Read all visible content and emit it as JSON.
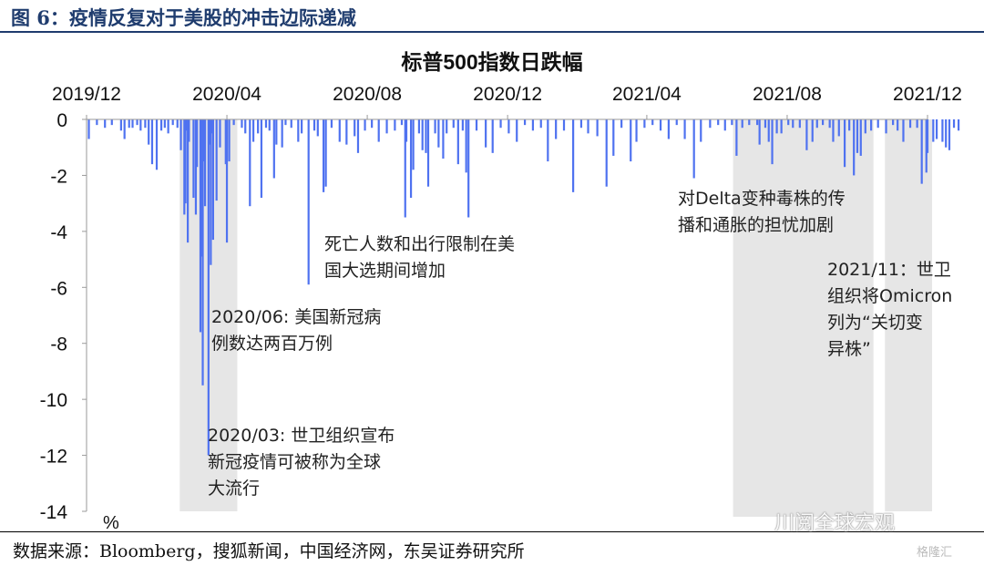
{
  "figure_label": "图 6：疫情反复对于美股的冲击边际递减",
  "source": "数据来源：Bloomberg，搜狐新闻，中国经济网，东吴证券研究所",
  "watermark": {
    "brand": "川阅全球宏观",
    "corner": "格隆汇"
  },
  "colors": {
    "bars": "#4f72f0",
    "shade": "#e6e6e6",
    "header": "#1f3c6e"
  },
  "chart_data": {
    "type": "bar",
    "title": "标普500指数日跌幅",
    "unit_label": "%",
    "xlabel": "",
    "ylabel": "",
    "ylim": [
      -14,
      0
    ],
    "y_ticks": [
      "0",
      "-2",
      "-4",
      "-6",
      "-8",
      "-10",
      "-12",
      "-14"
    ],
    "y_tick_values": [
      0,
      -2,
      -4,
      -6,
      -8,
      -10,
      -12,
      -14
    ],
    "x_range": [
      "2019-12",
      "2021-12"
    ],
    "x_ticks": [
      "2019/12",
      "2020/04",
      "2020/08",
      "2020/12",
      "2021/04",
      "2021/08",
      "2021/12"
    ],
    "x_tick_dates": [
      "2019-12",
      "2020-04",
      "2020-08",
      "2020-12",
      "2021-04",
      "2021-08",
      "2021-12"
    ],
    "grid": false,
    "legend": "none",
    "shaded_periods": [
      {
        "start": "2020-02-20",
        "end": "2020-04-10"
      },
      {
        "start": "2021-06-15",
        "end": "2021-10-15"
      },
      {
        "start": "2021-10-25",
        "end": "2021-12-05"
      }
    ],
    "annotations": [
      {
        "lines": [
          "2020/03: 世卫组织宣布",
          "新冠疫情可被称为全球",
          "大流行"
        ]
      },
      {
        "lines": [
          "2020/06: 美国新冠病",
          "例数达两百万例"
        ]
      },
      {
        "lines": [
          "死亡人数和出行限制在美",
          "国大选期间增加"
        ]
      },
      {
        "lines": [
          "对Delta变种毒株的传",
          "播和通胀的担忧加剧"
        ]
      },
      {
        "lines": [
          "2021/11：世卫",
          "组织将Omicron",
          "列为“关切变",
          "异株”"
        ]
      }
    ],
    "series": [
      {
        "dates": [
          "2019-12-03",
          "2019-12-10",
          "2019-12-17",
          "2019-12-23",
          "2019-12-31",
          "2020-01-03",
          "2020-01-07",
          "2020-01-10",
          "2020-01-14",
          "2020-01-17",
          "2020-01-21",
          "2020-01-24",
          "2020-01-27",
          "2020-01-31",
          "2020-02-04",
          "2020-02-07",
          "2020-02-10",
          "2020-02-14",
          "2020-02-18",
          "2020-02-21",
          "2020-02-24",
          "2020-02-25",
          "2020-02-26",
          "2020-02-27",
          "2020-02-28",
          "2020-03-03",
          "2020-03-05",
          "2020-03-06",
          "2020-03-09",
          "2020-03-10",
          "2020-03-11",
          "2020-03-12",
          "2020-03-13",
          "2020-03-16",
          "2020-03-17",
          "2020-03-18",
          "2020-03-19",
          "2020-03-20",
          "2020-03-23",
          "2020-03-26",
          "2020-03-31",
          "2020-04-01",
          "2020-04-03",
          "2020-04-07",
          "2020-04-14",
          "2020-04-17",
          "2020-04-21",
          "2020-04-24",
          "2020-04-28",
          "2020-05-01",
          "2020-05-05",
          "2020-05-08",
          "2020-05-12",
          "2020-05-14",
          "2020-05-19",
          "2020-05-22",
          "2020-05-27",
          "2020-06-02",
          "2020-06-05",
          "2020-06-11",
          "2020-06-16",
          "2020-06-19",
          "2020-06-24",
          "2020-06-26",
          "2020-07-01",
          "2020-07-08",
          "2020-07-14",
          "2020-07-21",
          "2020-07-24",
          "2020-07-30",
          "2020-08-05",
          "2020-08-11",
          "2020-08-18",
          "2020-08-25",
          "2020-08-31",
          "2020-09-03",
          "2020-09-04",
          "2020-09-08",
          "2020-09-10",
          "2020-09-15",
          "2020-09-18",
          "2020-09-21",
          "2020-09-23",
          "2020-09-29",
          "2020-10-02",
          "2020-10-06",
          "2020-10-09",
          "2020-10-15",
          "2020-10-19",
          "2020-10-23",
          "2020-10-26",
          "2020-10-28",
          "2020-11-04",
          "2020-11-12",
          "2020-11-18",
          "2020-11-25",
          "2020-12-02",
          "2020-12-09",
          "2020-12-16",
          "2020-12-23",
          "2020-12-30",
          "2021-01-05",
          "2021-01-12",
          "2021-01-19",
          "2021-01-27",
          "2021-02-03",
          "2021-02-09",
          "2021-02-17",
          "2021-02-25",
          "2021-03-03",
          "2021-03-10",
          "2021-03-18",
          "2021-03-23",
          "2021-03-30",
          "2021-04-06",
          "2021-04-13",
          "2021-04-20",
          "2021-04-27",
          "2021-05-04",
          "2021-05-12",
          "2021-05-18",
          "2021-05-26",
          "2021-06-02",
          "2021-06-08",
          "2021-06-14",
          "2021-06-18",
          "2021-06-23",
          "2021-06-29",
          "2021-07-06",
          "2021-07-08",
          "2021-07-13",
          "2021-07-16",
          "2021-07-19",
          "2021-07-23",
          "2021-07-27",
          "2021-08-02",
          "2021-08-06",
          "2021-08-12",
          "2021-08-18",
          "2021-08-23",
          "2021-08-27",
          "2021-09-01",
          "2021-09-07",
          "2021-09-10",
          "2021-09-15",
          "2021-09-20",
          "2021-09-24",
          "2021-09-28",
          "2021-10-01",
          "2021-10-04",
          "2021-10-08",
          "2021-10-13",
          "2021-10-19",
          "2021-10-26",
          "2021-11-01",
          "2021-11-05",
          "2021-11-10",
          "2021-11-16",
          "2021-11-22",
          "2021-11-26",
          "2021-11-30",
          "2021-12-01",
          "2021-12-06",
          "2021-12-09",
          "2021-12-14",
          "2021-12-17",
          "2021-12-20",
          "2021-12-24",
          "2021-12-28"
        ],
        "values": [
          -0.7,
          -0.2,
          -0.3,
          -0.2,
          -0.4,
          -0.7,
          -0.3,
          -0.3,
          -0.2,
          -0.4,
          -0.3,
          -0.9,
          -1.6,
          -1.8,
          -0.4,
          -0.3,
          -0.5,
          -0.2,
          -0.3,
          -1.1,
          -3.4,
          -3.0,
          -0.4,
          -4.4,
          -0.8,
          -2.8,
          -3.4,
          -1.7,
          -7.6,
          -4.9,
          -9.5,
          -1.5,
          -3.1,
          -12.0,
          -0.9,
          -5.2,
          -0.5,
          -4.3,
          -2.9,
          -1.0,
          -1.6,
          -4.4,
          -1.5,
          -0.2,
          -0.3,
          -0.5,
          -3.1,
          -0.8,
          -0.5,
          -2.8,
          -0.3,
          -0.4,
          -2.1,
          -0.9,
          -1.0,
          -0.2,
          -0.3,
          -0.8,
          -0.5,
          -5.9,
          -0.4,
          -0.6,
          -2.6,
          -2.4,
          -0.3,
          -0.8,
          -0.9,
          -0.6,
          -1.2,
          -0.4,
          -0.3,
          -0.8,
          -0.5,
          -0.4,
          -0.2,
          -3.5,
          -0.8,
          -2.8,
          -1.8,
          -0.5,
          -1.1,
          -1.2,
          -2.4,
          -0.5,
          -1.0,
          -1.4,
          -0.5,
          -0.3,
          -1.6,
          -0.4,
          -1.9,
          -3.5,
          -0.4,
          -1.0,
          -1.2,
          -0.3,
          -0.5,
          -0.8,
          -0.2,
          -0.4,
          -0.3,
          -1.5,
          -0.7,
          -0.4,
          -2.6,
          -0.3,
          -0.5,
          -0.6,
          -2.4,
          -1.3,
          -0.3,
          -1.5,
          -0.8,
          -0.3,
          -0.2,
          -0.4,
          -0.7,
          -0.2,
          -0.7,
          -2.1,
          -0.8,
          -0.3,
          -0.2,
          -0.4,
          -0.2,
          -1.3,
          -0.3,
          -0.2,
          -0.2,
          -0.9,
          -0.3,
          -0.8,
          -1.6,
          -0.5,
          -0.5,
          -0.2,
          -0.3,
          -0.3,
          -1.1,
          -0.8,
          -0.3,
          -0.2,
          -0.3,
          -0.8,
          -0.6,
          -1.7,
          -0.4,
          -2.0,
          -1.2,
          -1.3,
          -0.5,
          -0.4,
          -0.3,
          -0.5,
          -0.2,
          -0.4,
          -0.8,
          -0.3,
          -0.3,
          -2.3,
          -1.9,
          -1.2,
          -0.8,
          -0.7,
          -0.8,
          -1.0,
          -1.1,
          -0.3,
          -0.4
        ]
      }
    ]
  }
}
